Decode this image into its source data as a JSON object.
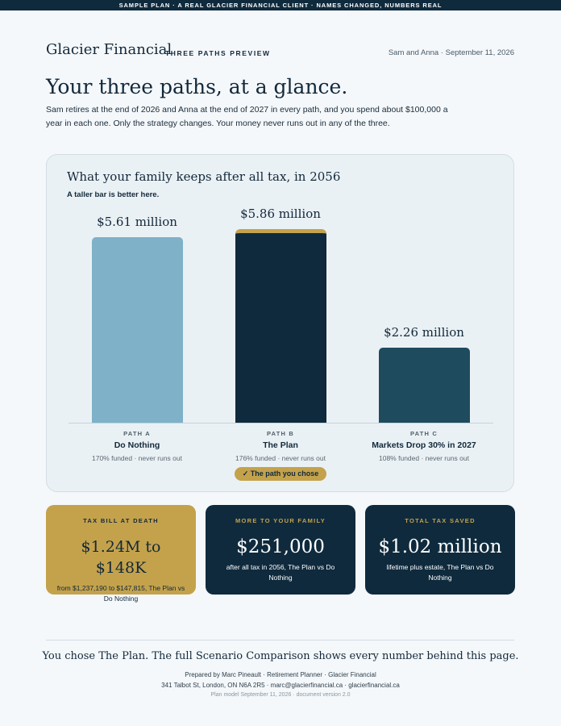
{
  "banner": "SAMPLE PLAN · A REAL GLACIER FINANCIAL CLIENT · NAMES CHANGED, NUMBERS REAL",
  "header": {
    "brand": "Glacier Financial",
    "subtitle": "THREE PATHS PREVIEW",
    "meta": "Sam and Anna · September 11, 2026"
  },
  "title": "Your three paths, at a glance.",
  "intro": "Sam retires at the end of 2026 and Anna at the end of 2027 in every path, and you spend about $100,000 a year in each one. Only the strategy changes. Your money never runs out in any of the three.",
  "colors": {
    "light_blue": "#7fb1c8",
    "navy": "#0f2a3d",
    "teal": "#1e4b5e",
    "gold": "#c4a24c"
  },
  "chart_data": {
    "type": "bar",
    "title": "What your family keeps after all tax, in 2056",
    "subtitle": "A taller bar is better here.",
    "unit": "million",
    "ylim": [
      0,
      6.4
    ],
    "categories": [
      "Do Nothing",
      "The Plan",
      "Markets Drop 30% in 2027"
    ],
    "values": [
      5.61,
      5.86,
      2.26
    ],
    "value_labels": [
      "$5.61 million",
      "$5.86 million",
      "$2.26 million"
    ],
    "path_tags": [
      "PATH A",
      "PATH B",
      "PATH C"
    ],
    "funded": [
      "170% funded · never runs out",
      "176% funded · never runs out",
      "108% funded · never runs out"
    ],
    "bar_colors": [
      "#7fb1c8",
      "#0f2a3d",
      "#1e4b5e"
    ],
    "highlight_index": 1,
    "highlight_label": "✓ The path you chose"
  },
  "cards": [
    {
      "title": "TAX BILL AT DEATH",
      "value": "$1.24M to $148K",
      "desc": "from $1,237,190 to $147,815, The Plan vs Do Nothing"
    },
    {
      "title": "MORE TO YOUR FAMILY",
      "value": "$251,000",
      "desc": "after all tax in 2056, The Plan vs Do Nothing"
    },
    {
      "title": "TOTAL TAX SAVED",
      "value": "$1.02 million",
      "desc": "lifetime plus estate, The Plan vs Do Nothing"
    }
  ],
  "closing": "You chose The Plan. The full Scenario Comparison shows every number behind this page.",
  "footer": {
    "line1": "Prepared by Marc Pineault · Retirement Planner · Glacier Financial",
    "line2": "341 Talbot St, London, ON N6A 2R5 · marc@glacierfinancial.ca · glacierfinancial.ca",
    "line3": "Plan model September 11, 2026 · document version 2.0"
  }
}
